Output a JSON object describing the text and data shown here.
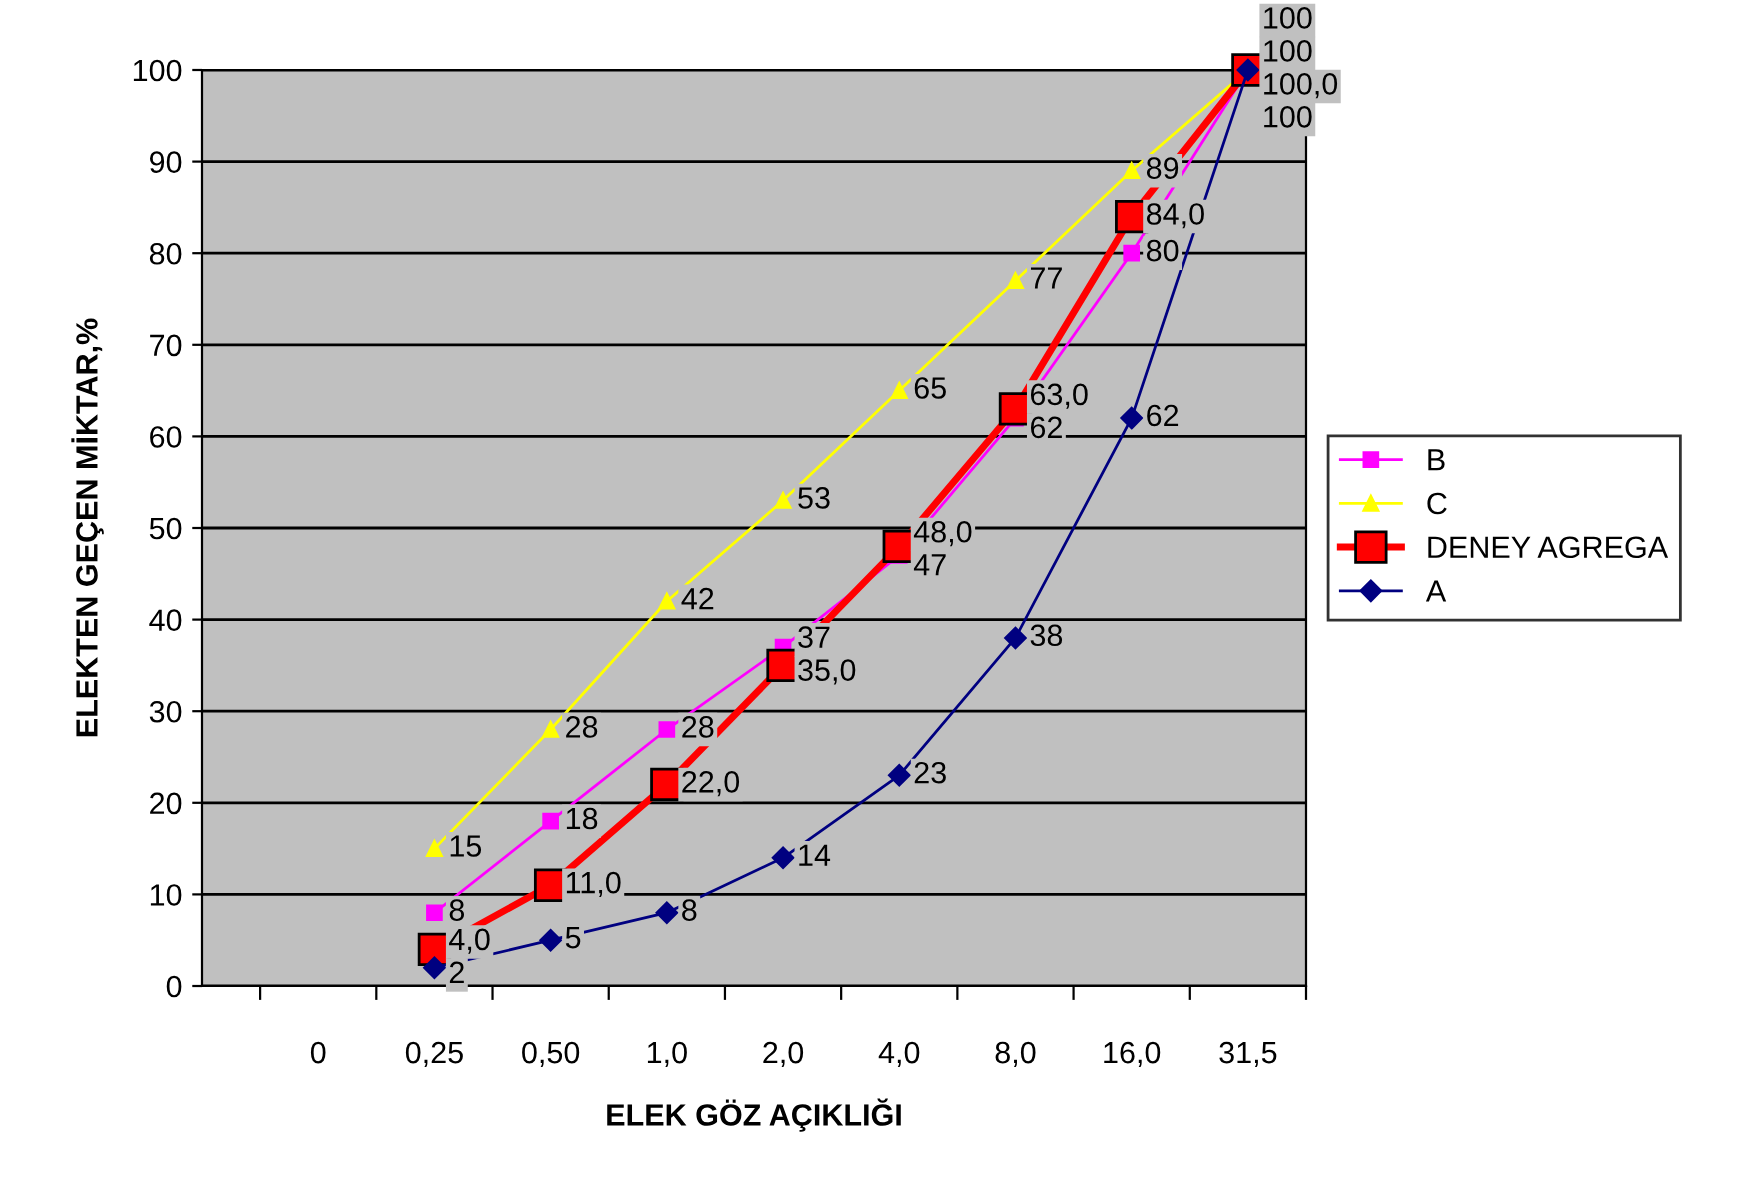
{
  "chart_data": {
    "type": "line",
    "xlabel": "ELEK GÖZ AÇIKLIĞI",
    "ylabel": "ELEKTEN GEÇEN MİKTAR,%",
    "categories": [
      "0",
      "0,25",
      "0,50",
      "1,0",
      "2,0",
      "4,0",
      "8,0",
      "16,0",
      "31,5"
    ],
    "series": [
      {
        "name": "B",
        "color": "#ff00ff",
        "marker": "square",
        "values": [
          null,
          8,
          18,
          28,
          37,
          47,
          62,
          80,
          100
        ],
        "value_labels": [
          null,
          "8",
          "18",
          "28",
          "37",
          "47",
          "62",
          "80",
          "100"
        ]
      },
      {
        "name": "C",
        "color": "#ffff00",
        "marker": "triangle",
        "values": [
          null,
          15,
          28,
          42,
          53,
          65,
          77,
          89,
          100
        ],
        "value_labels": [
          null,
          "15",
          "28",
          "42",
          "53",
          "65",
          "77",
          "89",
          "100"
        ]
      },
      {
        "name": "DENEY AGREGA",
        "color": "#ff0000",
        "marker": "square",
        "values": [
          null,
          4.0,
          11.0,
          22.0,
          35.0,
          48.0,
          63.0,
          84.0,
          100.0
        ],
        "value_labels": [
          null,
          "4,0",
          "11,0",
          "22,0",
          "35,0",
          "48,0",
          "63,0",
          "84,0",
          "100,0"
        ]
      },
      {
        "name": "A",
        "color": "#000080",
        "marker": "diamond",
        "values": [
          null,
          2,
          5,
          8,
          14,
          23,
          38,
          62,
          100
        ],
        "value_labels": [
          null,
          "2",
          "5",
          "8",
          "14",
          "23",
          "38",
          "62",
          "100"
        ]
      }
    ],
    "ylim": [
      0,
      100
    ],
    "yticks": [
      0,
      10,
      20,
      30,
      40,
      50,
      60,
      70,
      80,
      90,
      100
    ],
    "grid": "y",
    "legend": "right"
  }
}
